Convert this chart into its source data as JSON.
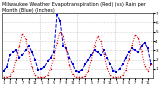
{
  "title": "Milwaukee Weather Evapotranspiration (Red) (vs) Rain per Month (Blue) (Inches)",
  "rain_blue": [
    0.8,
    1.2,
    2.5,
    2.8,
    3.0,
    2.2,
    2.5,
    3.0,
    3.5,
    2.8,
    2.0,
    0.9,
    1.0,
    1.2,
    1.8,
    2.2,
    2.8,
    6.8,
    6.2,
    3.5,
    3.2,
    2.2,
    1.5,
    0.8,
    0.7,
    0.9,
    1.5,
    2.0,
    2.5,
    3.0,
    2.8,
    2.5,
    3.0,
    2.2,
    1.5,
    0.8,
    0.7,
    1.0,
    1.5,
    2.2,
    2.8,
    3.2,
    3.0,
    2.8,
    3.5,
    3.8,
    3.2,
    1.5
  ],
  "evap_red": [
    0.1,
    0.1,
    0.2,
    0.8,
    2.0,
    3.5,
    4.8,
    4.2,
    2.8,
    1.2,
    0.3,
    0.1,
    0.1,
    0.1,
    0.3,
    1.0,
    2.2,
    3.8,
    5.0,
    4.5,
    3.0,
    1.4,
    0.4,
    0.1,
    0.1,
    0.1,
    0.2,
    0.8,
    2.0,
    3.5,
    4.5,
    4.0,
    2.6,
    1.1,
    0.3,
    0.1,
    0.1,
    0.1,
    0.3,
    0.9,
    2.1,
    3.6,
    4.7,
    4.3,
    2.9,
    1.3,
    0.8,
    1.5
  ],
  "ylim": [
    0,
    7
  ],
  "ytick_vals": [
    1,
    2,
    3,
    4,
    5,
    6,
    7
  ],
  "ytick_labels": [
    "1",
    "2",
    "3",
    "4",
    "5",
    "6",
    "7"
  ],
  "n_months": 48,
  "vline_positions": [
    12,
    24,
    36
  ],
  "background_color": "#ffffff",
  "rain_color": "#0000dd",
  "evap_color": "#dd0000",
  "grid_color": "#aaaaaa",
  "title_fontsize": 3.5,
  "tick_fontsize": 3.0,
  "linewidth": 0.7,
  "markersize": 2.0
}
